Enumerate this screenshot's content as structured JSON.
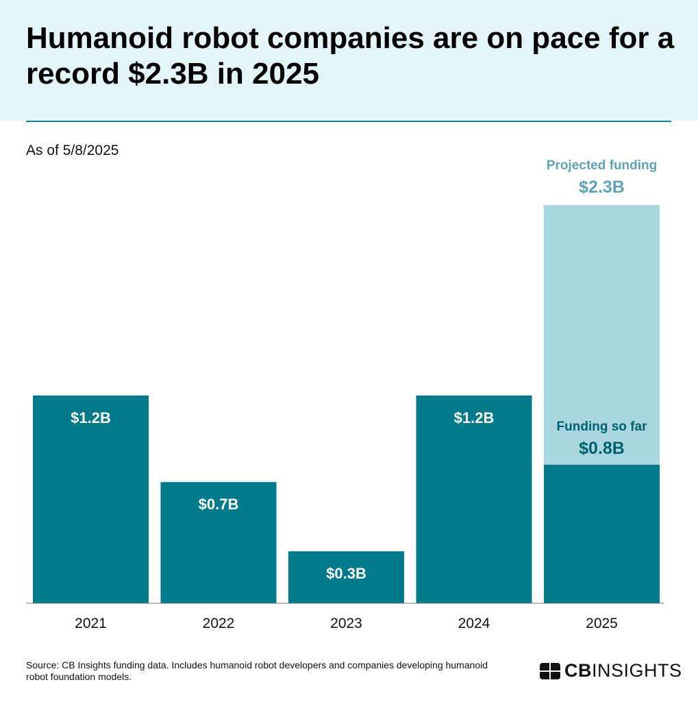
{
  "title": "Humanoid robot companies are on pace for a record $2.3B in 2025",
  "subtitle": "As of 5/8/2025",
  "source": "Source: CB Insights funding data. Includes humanoid robot developers and companies developing humanoid robot foundation models.",
  "logo": {
    "bold": "CB",
    "rest": "INSIGHTS"
  },
  "colors": {
    "bar": "#007a8a",
    "projected": "#a9d6df",
    "projected_label": "#5fa3b3",
    "so_far_label": "#00606d",
    "header_bg": "#e4f5fa"
  },
  "chart_data": {
    "type": "bar",
    "categories": [
      "2021",
      "2022",
      "2023",
      "2024",
      "2025"
    ],
    "series": [
      {
        "values": [
          1.2,
          0.7,
          0.3,
          1.2,
          0.8
        ],
        "labels": [
          "$1.2B",
          "$0.7B",
          "$0.3B",
          "$1.2B",
          "$0.8B"
        ]
      }
    ],
    "projection": {
      "category": "2025",
      "value": 2.3,
      "label": "$2.3B",
      "name": "Projected funding"
    },
    "so_far": {
      "category": "2025",
      "name": "Funding so far",
      "label": "$0.8B"
    },
    "unit": "USD billions",
    "ylim": [
      0,
      2.3
    ],
    "grid": false,
    "legend": "none"
  }
}
